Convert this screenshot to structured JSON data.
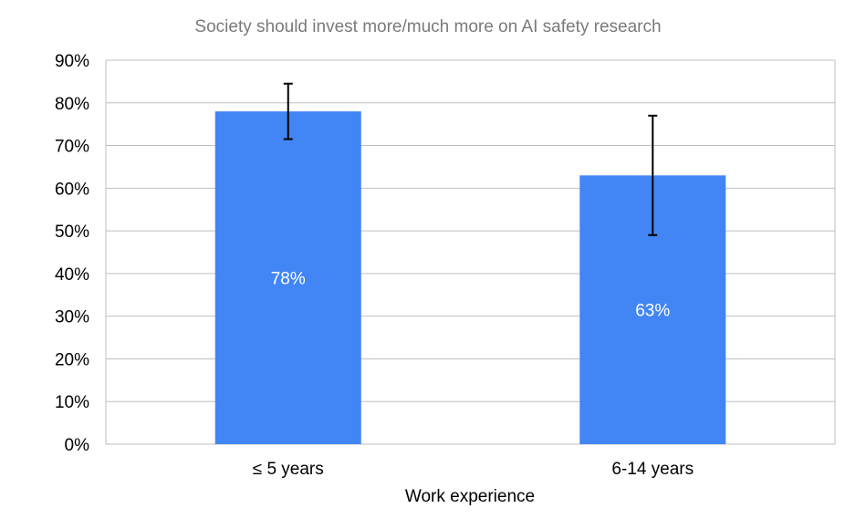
{
  "chart_data": {
    "type": "bar",
    "title": "Society should invest more/much more on AI safety research",
    "xlabel": "Work experience",
    "ylabel": "",
    "categories": [
      "≤ 5 years",
      "6-14 years"
    ],
    "values": [
      78,
      63
    ],
    "data_labels": [
      "78%",
      "63%"
    ],
    "error_bars": [
      {
        "low": 71.5,
        "high": 84.5
      },
      {
        "low": 49,
        "high": 77
      }
    ],
    "ylim": [
      0,
      90
    ],
    "yticks": [
      0,
      10,
      20,
      30,
      40,
      50,
      60,
      70,
      80,
      90
    ],
    "ytick_labels": [
      "0%",
      "10%",
      "20%",
      "30%",
      "40%",
      "50%",
      "60%",
      "70%",
      "80%",
      "90%"
    ],
    "grid": true,
    "legend": "none",
    "colors": {
      "bar": "#4285f4",
      "grid": "#bfbfbf",
      "title": "#7a7a7a",
      "error_bar": "#000000",
      "data_label": "#ffffff"
    }
  }
}
